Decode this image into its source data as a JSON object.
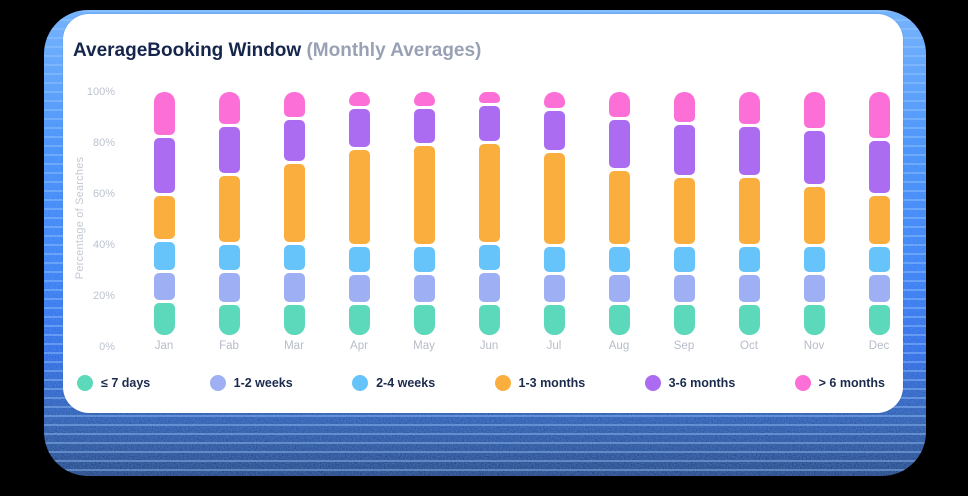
{
  "header": {
    "title": "AverageBooking Window",
    "subtitle": "(Monthly Averages)"
  },
  "colors": {
    "page_background": "#000000",
    "card_background": "#ffffff",
    "glow_blue": "#2563eb",
    "title_text": "#16254c",
    "subtitle_text": "#99a2b4",
    "axis_text": "#bdc3cf",
    "legend_text": "#1b2b4d"
  },
  "chart_data": {
    "type": "bar",
    "stacked": true,
    "title": "AverageBooking Window (Monthly Averages)",
    "xlabel": "",
    "ylabel": "Percentage of Searches",
    "ylim": [
      0,
      100
    ],
    "yticks": [
      "0%",
      "20%",
      "40%",
      "60%",
      "80%",
      "100%"
    ],
    "grid": false,
    "legend_position": "bottom",
    "categories": [
      "Jan",
      "Fab",
      "Mar",
      "Apr",
      "May",
      "Jun",
      "Jul",
      "Aug",
      "Sep",
      "Oct",
      "Nov",
      "Dec"
    ],
    "series": [
      {
        "name": "≤ 7 days",
        "color": "#5bd9ba",
        "values": [
          14,
          13,
          13,
          13,
          13,
          13,
          13,
          13,
          13,
          13,
          13,
          13
        ]
      },
      {
        "name": "1-2 weeks",
        "color": "#9faff4",
        "values": [
          12,
          13,
          13,
          12,
          12,
          13,
          12,
          12,
          12,
          12,
          12,
          12
        ]
      },
      {
        "name": "2-4 weeks",
        "color": "#66c4fb",
        "values": [
          12,
          11,
          11,
          11,
          11,
          11,
          11,
          11,
          11,
          11,
          11,
          11
        ]
      },
      {
        "name": "1-3 months",
        "color": "#faae3d",
        "values": [
          19,
          29,
          34,
          41,
          43,
          43,
          40,
          32,
          29,
          29,
          25,
          21
        ]
      },
      {
        "name": "3-6 months",
        "color": "#ac6cf2",
        "values": [
          24,
          20,
          18,
          17,
          15,
          15,
          17,
          21,
          22,
          21,
          23,
          23
        ]
      },
      {
        "name": "> 6 months",
        "color": "#fc6fd7",
        "values": [
          19,
          14,
          11,
          6,
          6,
          5,
          7,
          11,
          13,
          14,
          16,
          20
        ]
      }
    ]
  }
}
